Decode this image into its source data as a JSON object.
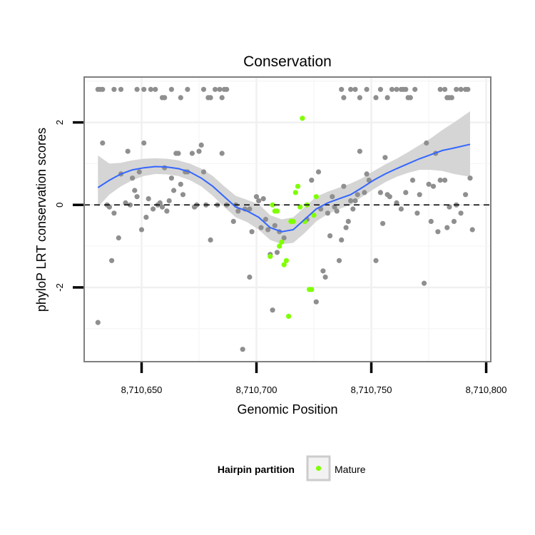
{
  "chart_data": {
    "type": "scatter",
    "title": "Conservation",
    "xlabel": "Genomic Position",
    "ylabel": "phyloP LRT conservation scores",
    "xlim": [
      8710625,
      8710802
    ],
    "ylim": [
      -3.8,
      3.1
    ],
    "x_ticks": [
      {
        "value": 8710650,
        "label": "8,710,650"
      },
      {
        "value": 8710700,
        "label": "8,710,700"
      },
      {
        "value": 8710750,
        "label": "8,710,750"
      },
      {
        "value": 8710800,
        "label": "8,710,800"
      }
    ],
    "y_ticks": [
      {
        "value": -2,
        "label": "-2"
      },
      {
        "value": 0,
        "label": "0"
      },
      {
        "value": 2,
        "label": "2"
      }
    ],
    "grid": true,
    "reference_line": {
      "y": 0,
      "style": "dashed",
      "color": "#000000"
    },
    "legend": {
      "title": "Hairpin partition",
      "placement": "bottom",
      "entries": [
        {
          "label": "Mature",
          "color": "#7fff00"
        }
      ]
    },
    "colors": {
      "other_points": "#8f8f8f",
      "mature_points": "#7fff00",
      "smooth_line": "#3366ff",
      "confidence_band": "#d3d3d3",
      "panel_border": "#7f7f7f"
    },
    "series": [
      {
        "group": "other",
        "points": [
          [
            8710631,
            2.8
          ],
          [
            8710632,
            2.8
          ],
          [
            8710633,
            2.8
          ],
          [
            8710638,
            2.8
          ],
          [
            8710641,
            2.8
          ],
          [
            8710648,
            2.8
          ],
          [
            8710651,
            2.8
          ],
          [
            8710654,
            2.8
          ],
          [
            8710656,
            2.8
          ],
          [
            8710659,
            2.6
          ],
          [
            8710660,
            2.6
          ],
          [
            8710663,
            2.8
          ],
          [
            8710667,
            2.6
          ],
          [
            8710670,
            2.8
          ],
          [
            8710677,
            2.8
          ],
          [
            8710679,
            2.6
          ],
          [
            8710680,
            2.6
          ],
          [
            8710682,
            2.8
          ],
          [
            8710684,
            2.8
          ],
          [
            8710685,
            2.6
          ],
          [
            8710686,
            2.8
          ],
          [
            8710687,
            2.8
          ],
          [
            8710737,
            2.8
          ],
          [
            8710738,
            2.6
          ],
          [
            8710741,
            2.8
          ],
          [
            8710743,
            2.8
          ],
          [
            8710745,
            2.6
          ],
          [
            8710748,
            2.8
          ],
          [
            8710752,
            2.6
          ],
          [
            8710754,
            2.8
          ],
          [
            8710757,
            2.6
          ],
          [
            8710759,
            2.8
          ],
          [
            8710761,
            2.8
          ],
          [
            8710763,
            2.8
          ],
          [
            8710764,
            2.8
          ],
          [
            8710765,
            2.8
          ],
          [
            8710766,
            2.6
          ],
          [
            8710767,
            2.6
          ],
          [
            8710769,
            2.8
          ],
          [
            8710780,
            2.8
          ],
          [
            8710782,
            2.8
          ],
          [
            8710783,
            2.6
          ],
          [
            8710784,
            2.6
          ],
          [
            8710785,
            2.6
          ],
          [
            8710787,
            2.8
          ],
          [
            8710789,
            2.8
          ],
          [
            8710791,
            2.8
          ],
          [
            8710792,
            2.8
          ],
          [
            8710631,
            -2.85
          ],
          [
            8710633,
            1.5
          ],
          [
            8710635,
            0.0
          ],
          [
            8710636,
            -0.05
          ],
          [
            8710637,
            -1.35
          ],
          [
            8710638,
            -0.2
          ],
          [
            8710640,
            -0.8
          ],
          [
            8710641,
            0.75
          ],
          [
            8710643,
            0.05
          ],
          [
            8710644,
            1.3
          ],
          [
            8710645,
            0.0
          ],
          [
            8710646,
            0.65
          ],
          [
            8710647,
            0.35
          ],
          [
            8710648,
            0.2
          ],
          [
            8710649,
            0.8
          ],
          [
            8710650,
            -0.6
          ],
          [
            8710651,
            1.5
          ],
          [
            8710652,
            -0.3
          ],
          [
            8710653,
            0.15
          ],
          [
            8710655,
            -0.1
          ],
          [
            8710657,
            0.0
          ],
          [
            8710658,
            0.05
          ],
          [
            8710659,
            -0.05
          ],
          [
            8710660,
            0.9
          ],
          [
            8710661,
            -0.15
          ],
          [
            8710662,
            0.1
          ],
          [
            8710663,
            0.65
          ],
          [
            8710664,
            0.35
          ],
          [
            8710665,
            1.25
          ],
          [
            8710666,
            1.25
          ],
          [
            8710667,
            0.5
          ],
          [
            8710668,
            0.25
          ],
          [
            8710669,
            0.8
          ],
          [
            8710670,
            0.8
          ],
          [
            8710672,
            1.25
          ],
          [
            8710673,
            -0.05
          ],
          [
            8710674,
            0.0
          ],
          [
            8710675,
            1.3
          ],
          [
            8710676,
            1.45
          ],
          [
            8710677,
            0.8
          ],
          [
            8710678,
            0.0
          ],
          [
            8710680,
            -0.85
          ],
          [
            8710683,
            0.0
          ],
          [
            8710685,
            1.25
          ],
          [
            8710687,
            0.0
          ],
          [
            8710690,
            -0.4
          ],
          [
            8710691,
            0.0
          ],
          [
            8710692,
            -0.15
          ],
          [
            8710694,
            -3.5
          ],
          [
            8710695,
            -0.1
          ],
          [
            8710697,
            -1.75
          ],
          [
            8710697,
            -0.1
          ],
          [
            8710698,
            -0.65
          ],
          [
            8710700,
            0.2
          ],
          [
            8710701,
            0.1
          ],
          [
            8710702,
            -0.55
          ],
          [
            8710703,
            0.15
          ],
          [
            8710704,
            -0.35
          ],
          [
            8710705,
            -0.6
          ],
          [
            8710706,
            -1.2
          ],
          [
            8710707,
            -2.55
          ],
          [
            8710708,
            -0.5
          ],
          [
            8710709,
            -1.15
          ],
          [
            8710710,
            -0.65
          ],
          [
            8710712,
            -0.8
          ],
          [
            8710722,
            -0.35
          ],
          [
            8710724,
            0.6
          ],
          [
            8710726,
            -2.35
          ],
          [
            8710727,
            0.8
          ],
          [
            8710728,
            -0.1
          ],
          [
            8710729,
            -1.6
          ],
          [
            8710730,
            -1.75
          ],
          [
            8710731,
            -0.2
          ],
          [
            8710732,
            -0.75
          ],
          [
            8710733,
            0.2
          ],
          [
            8710734,
            -0.05
          ],
          [
            8710735,
            -0.15
          ],
          [
            8710736,
            -1.35
          ],
          [
            8710737,
            -0.85
          ],
          [
            8710738,
            0.45
          ],
          [
            8710739,
            -0.55
          ],
          [
            8710740,
            -0.4
          ],
          [
            8710741,
            0.1
          ],
          [
            8710742,
            -0.1
          ],
          [
            8710743,
            0.1
          ],
          [
            8710744,
            0.25
          ],
          [
            8710745,
            1.3
          ],
          [
            8710747,
            0.3
          ],
          [
            8710748,
            0.75
          ],
          [
            8710749,
            0.6
          ],
          [
            8710752,
            -1.35
          ],
          [
            8710754,
            0.3
          ],
          [
            8710755,
            -0.45
          ],
          [
            8710756,
            1.15
          ],
          [
            8710757,
            0.25
          ],
          [
            8710758,
            0.2
          ],
          [
            8710761,
            0.05
          ],
          [
            8710763,
            -0.1
          ],
          [
            8710765,
            0.3
          ],
          [
            8710768,
            0.6
          ],
          [
            8710770,
            -0.2
          ],
          [
            8710771,
            0.25
          ],
          [
            8710773,
            -1.9
          ],
          [
            8710774,
            1.5
          ],
          [
            8710775,
            0.5
          ],
          [
            8710776,
            -0.4
          ],
          [
            8710777,
            0.45
          ],
          [
            8710778,
            1.25
          ],
          [
            8710779,
            -0.65
          ],
          [
            8710780,
            0.6
          ],
          [
            8710782,
            0.6
          ],
          [
            8710783,
            -0.55
          ],
          [
            8710784,
            -0.05
          ],
          [
            8710786,
            -0.4
          ],
          [
            8710787,
            0.0
          ],
          [
            8710789,
            -0.2
          ],
          [
            8710791,
            0.25
          ],
          [
            8710793,
            0.65
          ],
          [
            8710794,
            -0.6
          ]
        ]
      },
      {
        "group": "Mature",
        "points": [
          [
            8710707,
            0.0
          ],
          [
            8710708,
            -0.15
          ],
          [
            8710709,
            -0.15
          ],
          [
            8710710,
            -1.0
          ],
          [
            8710711,
            -0.9
          ],
          [
            8710712,
            -1.45
          ],
          [
            8710713,
            -1.35
          ],
          [
            8710714,
            -2.7
          ],
          [
            8710715,
            -0.4
          ],
          [
            8710716,
            -0.4
          ],
          [
            8710717,
            0.3
          ],
          [
            8710718,
            0.45
          ],
          [
            8710719,
            -0.05
          ],
          [
            8710720,
            2.1
          ],
          [
            8710721,
            -0.4
          ],
          [
            8710722,
            0.0
          ],
          [
            8710723,
            -2.05
          ],
          [
            8710724,
            -2.05
          ],
          [
            8710725,
            -0.25
          ],
          [
            8710726,
            0.2
          ],
          [
            8710706,
            -1.25
          ]
        ]
      }
    ],
    "smooth": {
      "x": [
        8710631,
        8710636,
        8710641,
        8710646,
        8710651,
        8710656,
        8710661,
        8710666,
        8710671,
        8710676,
        8710681,
        8710686,
        8710691,
        8710696,
        8710701,
        8710706,
        8710711,
        8710716,
        8710721,
        8710726,
        8710731,
        8710736,
        8710741,
        8710746,
        8710751,
        8710756,
        8710761,
        8710766,
        8710771,
        8710776,
        8710781,
        8710786,
        8710793
      ],
      "y": [
        0.42,
        0.6,
        0.75,
        0.85,
        0.9,
        0.93,
        0.92,
        0.88,
        0.8,
        0.65,
        0.45,
        0.2,
        -0.05,
        -0.15,
        -0.3,
        -0.55,
        -0.65,
        -0.6,
        -0.35,
        -0.1,
        0.05,
        0.15,
        0.25,
        0.42,
        0.6,
        0.75,
        0.88,
        1.0,
        1.12,
        1.22,
        1.32,
        1.38,
        1.47
      ],
      "lower": [
        -0.05,
        0.25,
        0.45,
        0.6,
        0.7,
        0.75,
        0.74,
        0.7,
        0.6,
        0.45,
        0.22,
        -0.05,
        -0.3,
        -0.42,
        -0.6,
        -0.85,
        -0.95,
        -0.92,
        -0.68,
        -0.4,
        -0.22,
        -0.1,
        0.0,
        0.2,
        0.38,
        0.55,
        0.68,
        0.78,
        0.85,
        0.85,
        0.82,
        0.75,
        0.68
      ],
      "upper": [
        1.2,
        1.0,
        1.02,
        1.08,
        1.12,
        1.13,
        1.12,
        1.08,
        1.0,
        0.88,
        0.7,
        0.45,
        0.22,
        0.12,
        0.02,
        -0.25,
        -0.35,
        -0.3,
        -0.05,
        0.2,
        0.32,
        0.42,
        0.52,
        0.65,
        0.82,
        0.98,
        1.12,
        1.28,
        1.45,
        1.62,
        1.82,
        2.0,
        2.27
      ]
    }
  }
}
